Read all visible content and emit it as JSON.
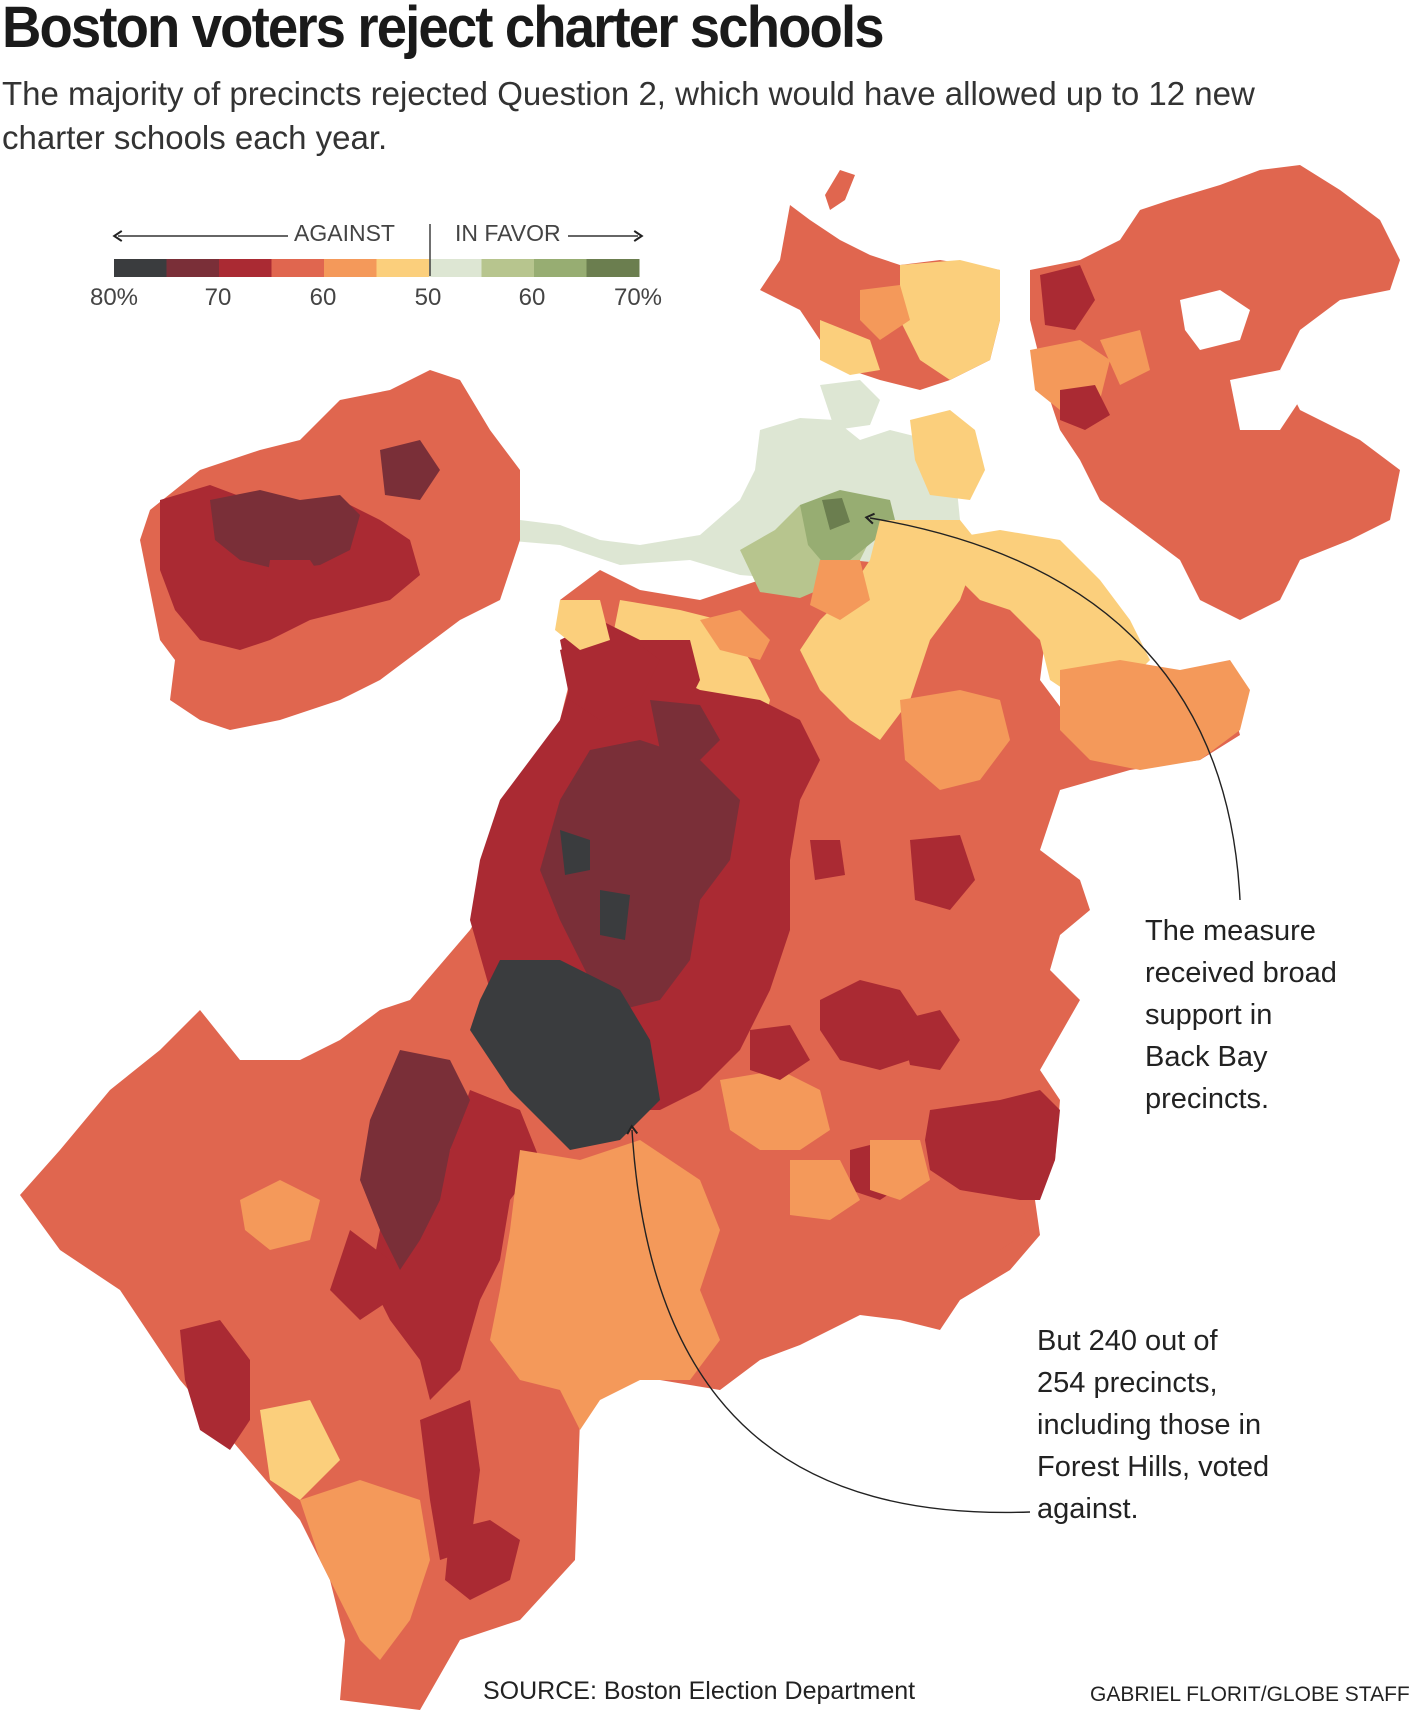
{
  "title": "Boston voters reject charter schools",
  "subtitle": "The majority of precincts rejected Question 2, which would have allowed up to 12 new charter schools each year.",
  "legend": {
    "against_label": "AGAINST",
    "favor_label": "IN FAVOR",
    "tick_labels": [
      "80%",
      "70",
      "60",
      "50",
      "60",
      "70%"
    ],
    "swatches": [
      "#3a3c3e",
      "#7a2f38",
      "#aa2a33",
      "#e0664f",
      "#f4995a",
      "#fbcf7c",
      "#dde6d3",
      "#b7c58e",
      "#97ad72",
      "#6b7e4f"
    ]
  },
  "annotations": {
    "back_bay_note": [
      "The measure",
      "received broad",
      "support in",
      "Back Bay",
      "precincts."
    ],
    "forest_hills_note": [
      "But 240 out of",
      "254 precincts,",
      "including those in",
      "Forest Hills, voted",
      "against."
    ]
  },
  "source": "SOURCE: Boston Election Department",
  "credit": "GABRIEL FLORIT/GLOBE STAFF"
}
